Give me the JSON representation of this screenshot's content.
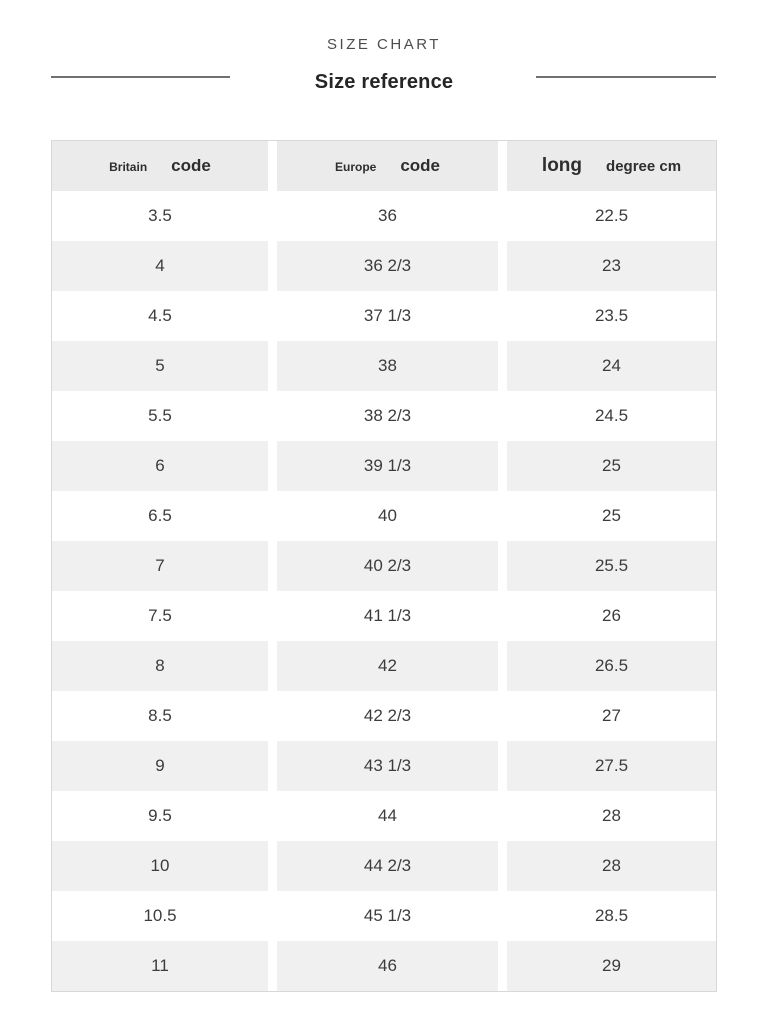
{
  "header": {
    "eyebrow": "SIZE CHART",
    "title": "Size reference"
  },
  "chart_data": {
    "type": "table",
    "title": "Size reference",
    "columns": [
      {
        "label": "Britain code",
        "parts": [
          {
            "text": "Britain",
            "size": "xs"
          },
          {
            "text": "code",
            "size": "lg"
          }
        ]
      },
      {
        "label": "Europe code",
        "parts": [
          {
            "text": "Europe",
            "size": "xs"
          },
          {
            "text": "code",
            "size": "lg"
          }
        ]
      },
      {
        "label": "long degree cm",
        "parts": [
          {
            "text": "long",
            "size": "xl"
          },
          {
            "text": "degree cm",
            "size": "md"
          }
        ]
      }
    ],
    "rows": [
      [
        "3.5",
        "36",
        "22.5"
      ],
      [
        "4",
        "36 2/3",
        "23"
      ],
      [
        "4.5",
        "37 1/3",
        "23.5"
      ],
      [
        "5",
        "38",
        "24"
      ],
      [
        "5.5",
        "38 2/3",
        "24.5"
      ],
      [
        "6",
        "39 1/3",
        "25"
      ],
      [
        "6.5",
        "40",
        "25"
      ],
      [
        "7",
        "40 2/3",
        "25.5"
      ],
      [
        "7.5",
        "41 1/3",
        "26"
      ],
      [
        "8",
        "42",
        "26.5"
      ],
      [
        "8.5",
        "42 2/3",
        "27"
      ],
      [
        "9",
        "43 1/3",
        "27.5"
      ],
      [
        "9.5",
        "44",
        "28"
      ],
      [
        "10",
        "44 2/3",
        "28"
      ],
      [
        "10.5",
        "45 1/3",
        "28.5"
      ],
      [
        "11",
        "46",
        "29"
      ]
    ]
  },
  "colors": {
    "header_bg": "#ebebeb",
    "row_bg": "#ffffff",
    "row_alt_bg": "#f0f0f0",
    "table_border": "#d8d8d8",
    "divider": "#707070",
    "heading_text": "#4d4d4d",
    "title_text": "#262626",
    "cell_text": "#3c3c3c"
  }
}
